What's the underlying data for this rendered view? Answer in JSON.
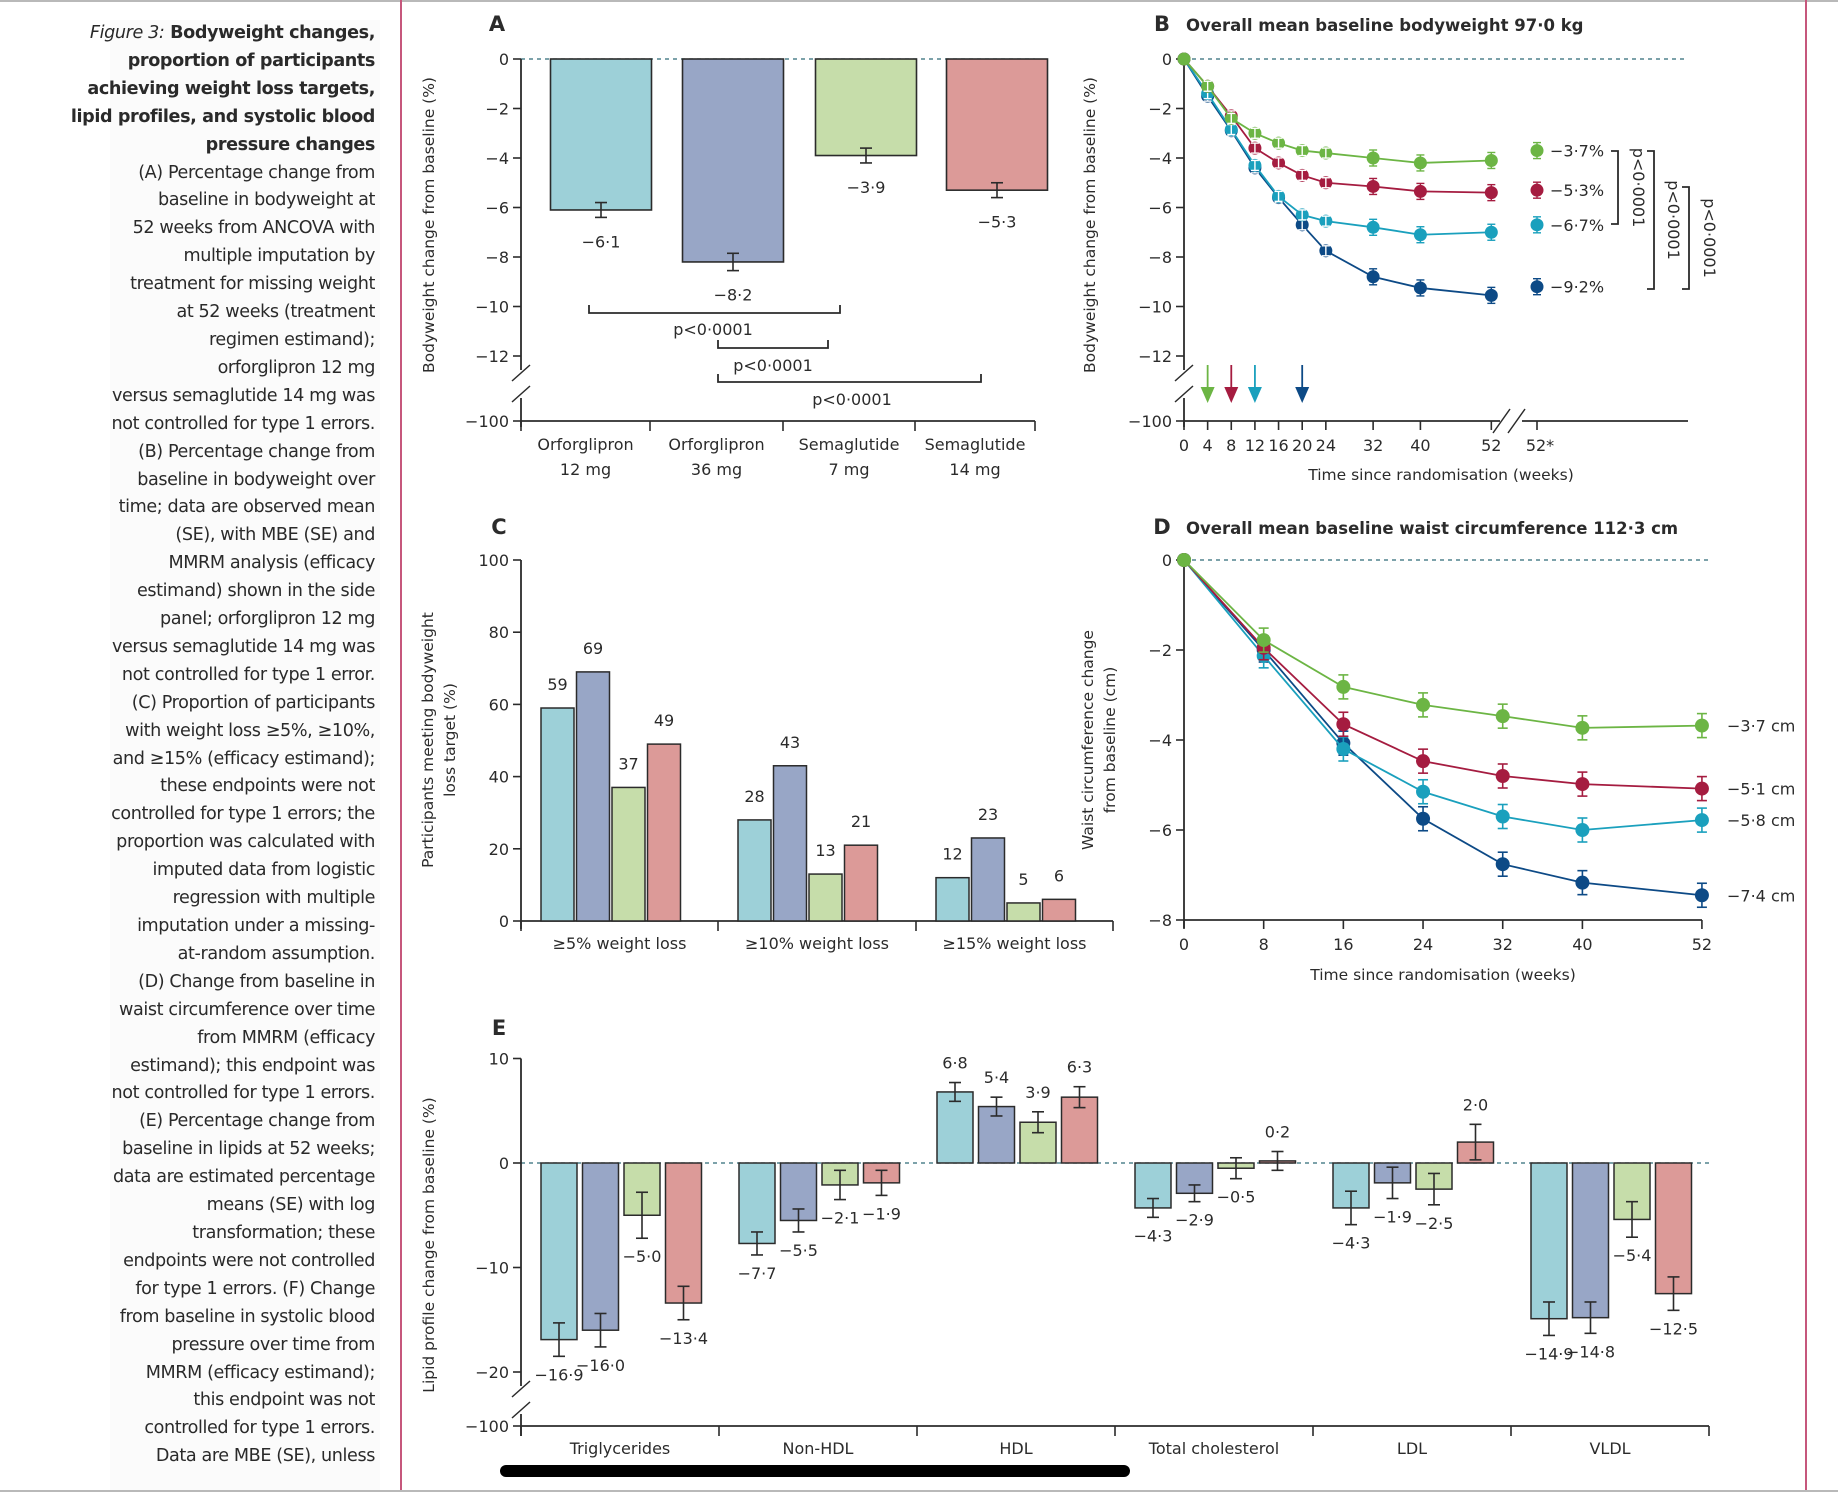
{
  "caption": {
    "figure_label": "Figure 3:",
    "title": "Bodyweight changes, proportion of participants achieving weight loss targets, lipid profiles, and systolic blood pressure changes",
    "lines": [
      "(A) Percentage change from",
      "baseline in bodyweight at",
      "52 weeks from ANCOVA with",
      "multiple imputation by",
      "treatment for missing weight",
      "at 52 weeks (treatment",
      "regimen estimand);",
      "orforglipron 12 mg",
      "versus semaglutide 14 mg was",
      "not controlled for type 1 errors.",
      "(B) Percentage change from",
      "baseline in bodyweight over",
      "time; data are observed mean",
      "(SE), with MBE (SE) and",
      "MMRM analysis (efficacy",
      "estimand) shown in the side",
      "panel; orforglipron 12 mg",
      "versus semaglutide 14 mg was",
      "not controlled for type 1 error.",
      "(C) Proportion of participants",
      "with weight loss ≥5%, ≥10%,",
      "and ≥15% (efficacy estimand);",
      "these endpoints were not",
      "controlled for type 1 errors; the",
      "proportion was calculated with",
      "imputed data from logistic",
      "regression with multiple",
      "imputation under a missing-",
      "at-random assumption.",
      "(D) Change from baseline in",
      "waist circumference over time",
      "from MMRM (efficacy",
      "estimand); this endpoint was",
      "not controlled for type 1 errors.",
      "(E) Percentage change from",
      "baseline in lipids at 52 weeks;",
      "data are estimated percentage",
      "means (SE) with log",
      "transformation; these",
      "endpoints were not controlled",
      "for type 1 errors. (F) Change",
      "from baseline in systolic blood",
      "pressure over time from",
      "MMRM (efficacy estimand);",
      "this endpoint was not",
      "controlled for type 1 errors.",
      "Data are MBE (SE), unless"
    ]
  },
  "colors": {
    "bar_orf12": "#9dd0d8",
    "bar_orf36": "#98a6c6",
    "bar_sema7": "#c6ddaa",
    "bar_sema14": "#dc9a98",
    "line_orf12": "#1aa0bd",
    "line_orf36": "#0d4a86",
    "line_sema7": "#6cb544",
    "line_sema14": "#a51c40",
    "axis": "#2b2b2b",
    "divider": "#c6577c"
  },
  "chart_data": [
    {
      "panel": "A",
      "type": "bar",
      "title": "",
      "ylabel": "Bodyweight change from baseline (%)",
      "xlabel": "",
      "categories": [
        "Orforglipron\n12 mg",
        "Orforglipron\n36 mg",
        "Semaglutide\n7 mg",
        "Semaglutide\n14 mg"
      ],
      "category_lines": [
        [
          "Orforglipron",
          "12 mg"
        ],
        [
          "Orforglipron",
          "36 mg"
        ],
        [
          "Semaglutide",
          "7 mg"
        ],
        [
          "Semaglutide",
          "14 mg"
        ]
      ],
      "values": [
        -6.1,
        -8.2,
        -3.9,
        -5.3
      ],
      "labels": [
        "−6·1",
        "−8·2",
        "−3·9",
        "−5·3"
      ],
      "errors": [
        0.3,
        0.35,
        0.3,
        0.3
      ],
      "yticks": [
        0,
        -2,
        -4,
        -6,
        -8,
        -10,
        -12,
        -100
      ],
      "ytick_labels": [
        "0",
        "−2",
        "−4",
        "−6",
        "−8",
        "−10",
        "−12",
        "−100"
      ],
      "ylim": [
        -12,
        0
      ],
      "axis_break": true,
      "comparisons": [
        {
          "from": 0,
          "to": 2,
          "label": "p<0·0001"
        },
        {
          "from": 1,
          "to": 2,
          "label": "p<0·0001"
        },
        {
          "from": 1,
          "to": 3,
          "label": "p<0·0001"
        }
      ]
    },
    {
      "panel": "B",
      "type": "line",
      "title": "Overall mean baseline bodyweight 97·0 kg",
      "ylabel": "Bodyweight change from baseline (%)",
      "xlabel": "Time since randomisation (weeks)",
      "x": [
        0,
        4,
        8,
        12,
        16,
        20,
        24,
        32,
        40,
        52
      ],
      "xtick_labels": [
        "0",
        "4",
        "8",
        "12",
        "16",
        "20",
        "24",
        "32",
        "40",
        "52",
        "52*"
      ],
      "yticks": [
        0,
        -2,
        -4,
        -6,
        -8,
        -10,
        -12,
        -100
      ],
      "ytick_labels": [
        "0",
        "−2",
        "−4",
        "−6",
        "−8",
        "−10",
        "−12",
        "−100"
      ],
      "ylim": [
        -12,
        0
      ],
      "axis_break": true,
      "series": [
        {
          "name": "Semaglutide 7 mg",
          "color_key": "line_sema7",
          "values": [
            0,
            -1.1,
            -2.4,
            -3.0,
            -3.4,
            -3.7,
            -3.8,
            -4.0,
            -4.2,
            -4.1
          ],
          "side_value": -3.7,
          "side_label": "−3·7%",
          "arrow_week": 4
        },
        {
          "name": "Semaglutide 14 mg",
          "color_key": "line_sema14",
          "values": [
            0,
            -1.1,
            -2.3,
            -3.6,
            -4.2,
            -4.7,
            -5.0,
            -5.15,
            -5.35,
            -5.4
          ],
          "side_value": -5.3,
          "side_label": "−5·3%",
          "arrow_week": 8
        },
        {
          "name": "Orforglipron 12 mg",
          "color_key": "line_orf12",
          "values": [
            0,
            -1.4,
            -2.85,
            -4.3,
            -5.55,
            -6.3,
            -6.55,
            -6.8,
            -7.1,
            -7.0
          ],
          "side_value": -6.7,
          "side_label": "−6·7%",
          "arrow_week": 12
        },
        {
          "name": "Orforglipron 36 mg",
          "color_key": "line_orf36",
          "values": [
            0,
            -1.5,
            -2.9,
            -4.4,
            -5.6,
            -6.7,
            -7.75,
            -8.8,
            -9.25,
            -9.55
          ],
          "side_value": -9.2,
          "side_label": "−9·2%",
          "arrow_week": 20
        }
      ],
      "comparisons": [
        {
          "from": "−3·7%",
          "to": "−6·7%",
          "label": "p<0·0001"
        },
        {
          "from": "−3·7%",
          "to": "−9·2%",
          "label": "p<0·0001"
        },
        {
          "from": "−5·3%",
          "to": "−9·2%",
          "label": "p<0·0001"
        }
      ]
    },
    {
      "panel": "C",
      "type": "bar",
      "title": "",
      "ylabel": "Participants meeting bodyweight loss target (%)",
      "ylabel_lines": [
        "Participants meeting bodyweight",
        "loss target (%)"
      ],
      "categories": [
        "≥5% weight loss",
        "≥10% weight loss",
        "≥15% weight loss"
      ],
      "series": [
        {
          "name": "Orforglipron 12 mg",
          "color_key": "bar_orf12",
          "values": [
            59,
            28,
            12
          ]
        },
        {
          "name": "Orforglipron 36 mg",
          "color_key": "bar_orf36",
          "values": [
            69,
            43,
            23
          ]
        },
        {
          "name": "Semaglutide 7 mg",
          "color_key": "bar_sema7",
          "values": [
            37,
            13,
            5
          ]
        },
        {
          "name": "Semaglutide 14 mg",
          "color_key": "bar_sema14",
          "values": [
            49,
            21,
            6
          ]
        }
      ],
      "yticks": [
        0,
        20,
        40,
        60,
        80,
        100
      ],
      "ylim": [
        0,
        100
      ]
    },
    {
      "panel": "D",
      "type": "line",
      "title": "Overall mean baseline waist circumference 112·3 cm",
      "ylabel": "Waist circumference change from baseline (cm)",
      "ylabel_lines": [
        "Waist circumference change",
        "from baseline (cm)"
      ],
      "xlabel": "Time since randomisation (weeks)",
      "x": [
        0,
        8,
        16,
        24,
        32,
        40,
        52
      ],
      "yticks": [
        0,
        -2,
        -4,
        -6,
        -8
      ],
      "ytick_labels": [
        "0",
        "−2",
        "−4",
        "−6",
        "−8"
      ],
      "ylim": [
        -8,
        0
      ],
      "series": [
        {
          "name": "Semaglutide 7 mg",
          "color_key": "line_sema7",
          "values": [
            0,
            -1.78,
            -2.82,
            -3.22,
            -3.47,
            -3.73,
            -3.68
          ],
          "end_label": "−3·7 cm"
        },
        {
          "name": "Semaglutide 14 mg",
          "color_key": "line_sema14",
          "values": [
            0,
            -1.95,
            -3.65,
            -4.47,
            -4.8,
            -4.98,
            -5.08
          ],
          "end_label": "−5·1 cm"
        },
        {
          "name": "Orforglipron 12 mg",
          "color_key": "line_orf12",
          "values": [
            0,
            -2.13,
            -4.2,
            -5.15,
            -5.7,
            -6.0,
            -5.78
          ],
          "end_label": "−5·8 cm"
        },
        {
          "name": "Orforglipron 36 mg",
          "color_key": "line_orf36",
          "values": [
            0,
            -2.0,
            -4.07,
            -5.75,
            -6.76,
            -7.17,
            -7.45
          ],
          "end_label": "−7·4 cm"
        }
      ]
    },
    {
      "panel": "E",
      "type": "bar",
      "title": "",
      "ylabel": "Lipid profile change from baseline (%)",
      "categories": [
        "Triglycerides",
        "Non-HDL",
        "HDL",
        "Total cholesterol",
        "LDL",
        "VLDL"
      ],
      "series": [
        {
          "name": "Orforglipron 12 mg",
          "color_key": "bar_orf12",
          "values": [
            -16.9,
            -7.7,
            6.8,
            -4.3,
            -4.3,
            -14.9
          ],
          "labels": [
            "−16·9",
            "−7·7",
            "6·8",
            "−4·3",
            "−4·3",
            "−14·9"
          ],
          "errors": [
            1.6,
            1.1,
            0.9,
            0.9,
            1.6,
            1.6
          ]
        },
        {
          "name": "Orforglipron 36 mg",
          "color_key": "bar_orf36",
          "values": [
            -16.0,
            -5.5,
            5.4,
            -2.9,
            -1.9,
            -14.8
          ],
          "labels": [
            "−16·0",
            "−5·5",
            "5·4",
            "−2·9",
            "−1·9",
            "−14·8"
          ],
          "errors": [
            1.6,
            1.1,
            0.9,
            0.8,
            1.5,
            1.5
          ]
        },
        {
          "name": "Semaglutide 7 mg",
          "color_key": "bar_sema7",
          "values": [
            -5.0,
            -2.1,
            3.9,
            -0.5,
            -2.5,
            -5.4
          ],
          "labels": [
            "−5·0",
            "−2·1",
            "3·9",
            "−0·5",
            "−2·5",
            "−5·4"
          ],
          "errors": [
            2.2,
            1.4,
            1.0,
            1.0,
            1.5,
            1.7
          ]
        },
        {
          "name": "Semaglutide 14 mg",
          "color_key": "bar_sema14",
          "values": [
            -13.4,
            -1.9,
            6.3,
            0.2,
            2.0,
            -12.5
          ],
          "labels": [
            "−13·4",
            "−1·9",
            "6·3",
            "0·2",
            "2·0",
            "−12·5"
          ],
          "errors": [
            1.6,
            1.2,
            1.0,
            0.9,
            1.7,
            1.6
          ]
        }
      ],
      "yticks": [
        10,
        0,
        -10,
        -20,
        -100
      ],
      "ytick_labels": [
        "10",
        "0",
        "−10",
        "−20",
        "−100"
      ],
      "ylim": [
        -20,
        10
      ],
      "axis_break": true
    }
  ],
  "panel_labels": {
    "A": "A",
    "B": "B",
    "C": "C",
    "D": "D",
    "E": "E"
  }
}
